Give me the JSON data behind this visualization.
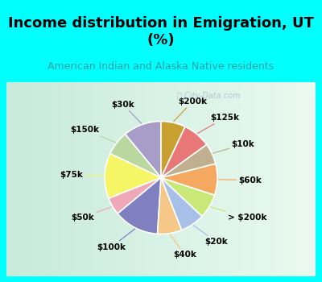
{
  "title": "Income distribution in Emigration, UT\n(%)",
  "subtitle": "American Indian and Alaska Native residents",
  "watermark": "ⓘ City-Data.com",
  "labels": [
    "$30k",
    "$150k",
    "$75k",
    "$50k",
    "$100k",
    "$40k",
    "$20k",
    "> $200k",
    "$60k",
    "$10k",
    "$125k",
    "$200k"
  ],
  "values": [
    11,
    7,
    13,
    5,
    13,
    7,
    7,
    7,
    9,
    6,
    8,
    7
  ],
  "colors": [
    "#a89cc8",
    "#b8d8a0",
    "#f5f566",
    "#f0a8b8",
    "#8080c0",
    "#f5c888",
    "#a8c0e8",
    "#c8e878",
    "#f5a860",
    "#c0b090",
    "#e87878",
    "#c8a030"
  ],
  "background_cyan": "#00ffff",
  "background_chart": "#d8f0e8",
  "title_color": "#000000",
  "subtitle_color": "#30a0a0",
  "label_color": "#000000",
  "startangle": 90,
  "wedge_edge_color": "#ffffff",
  "wedge_linewidth": 1.2,
  "title_fontsize": 13,
  "subtitle_fontsize": 9,
  "label_fontsize": 7.5,
  "watermark_color": "#a0b8c8",
  "border_width": 8
}
